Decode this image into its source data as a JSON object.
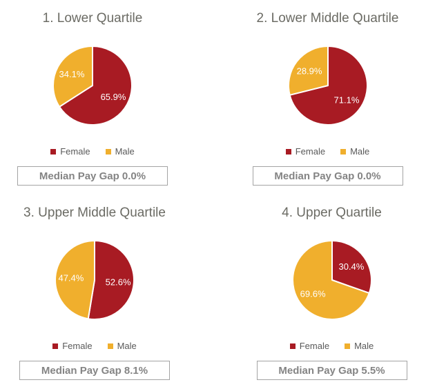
{
  "colors": {
    "female": "#A81B23",
    "male": "#F0AF2D",
    "percent_label": "#FFFFFF",
    "title_text": "#6B6B64",
    "legend_text": "#595959",
    "box_text": "#848484",
    "box_border": "#A3A3A3",
    "background": "#FFFFFF"
  },
  "legend": {
    "female_label": "Female",
    "male_label": "Male"
  },
  "chart_data": [
    {
      "type": "pie",
      "title": "1. Lower Quartile",
      "start_angle": "12-oclock",
      "direction": "clockwise",
      "legend_position": "bottom",
      "series": [
        {
          "name": "Female",
          "value": 65.9,
          "label": "65.9%",
          "color": "#A81B23"
        },
        {
          "name": "Male",
          "value": 34.1,
          "label": "34.1%",
          "color": "#F0AF2D"
        }
      ],
      "median_label": "Median Pay Gap 0.0%",
      "median_pay_gap_pct": 0.0
    },
    {
      "type": "pie",
      "title": "2. Lower Middle Quartile",
      "start_angle": "12-oclock",
      "direction": "clockwise",
      "legend_position": "bottom",
      "series": [
        {
          "name": "Female",
          "value": 71.1,
          "label": "71.1%",
          "color": "#A81B23"
        },
        {
          "name": "Male",
          "value": 28.9,
          "label": "28.9%",
          "color": "#F0AF2D"
        }
      ],
      "median_label": "Median Pay Gap 0.0%",
      "median_pay_gap_pct": 0.0
    },
    {
      "type": "pie",
      "title": "3. Upper Middle Quartile",
      "start_angle": "12-oclock",
      "direction": "clockwise",
      "legend_position": "bottom",
      "series": [
        {
          "name": "Female",
          "value": 52.6,
          "label": "52.6%",
          "color": "#A81B23"
        },
        {
          "name": "Male",
          "value": 47.4,
          "label": "47.4%",
          "color": "#F0AF2D"
        }
      ],
      "median_label": "Median Pay Gap 8.1%",
      "median_pay_gap_pct": 8.1
    },
    {
      "type": "pie",
      "title": "4. Upper Quartile",
      "start_angle": "12-oclock",
      "direction": "clockwise",
      "legend_position": "bottom",
      "series": [
        {
          "name": "Female",
          "value": 30.4,
          "label": "30.4%",
          "color": "#A81B23"
        },
        {
          "name": "Male",
          "value": 69.6,
          "label": "69.6%",
          "color": "#F0AF2D"
        }
      ],
      "median_label": "Median Pay Gap 5.5%",
      "median_pay_gap_pct": 5.5
    }
  ]
}
